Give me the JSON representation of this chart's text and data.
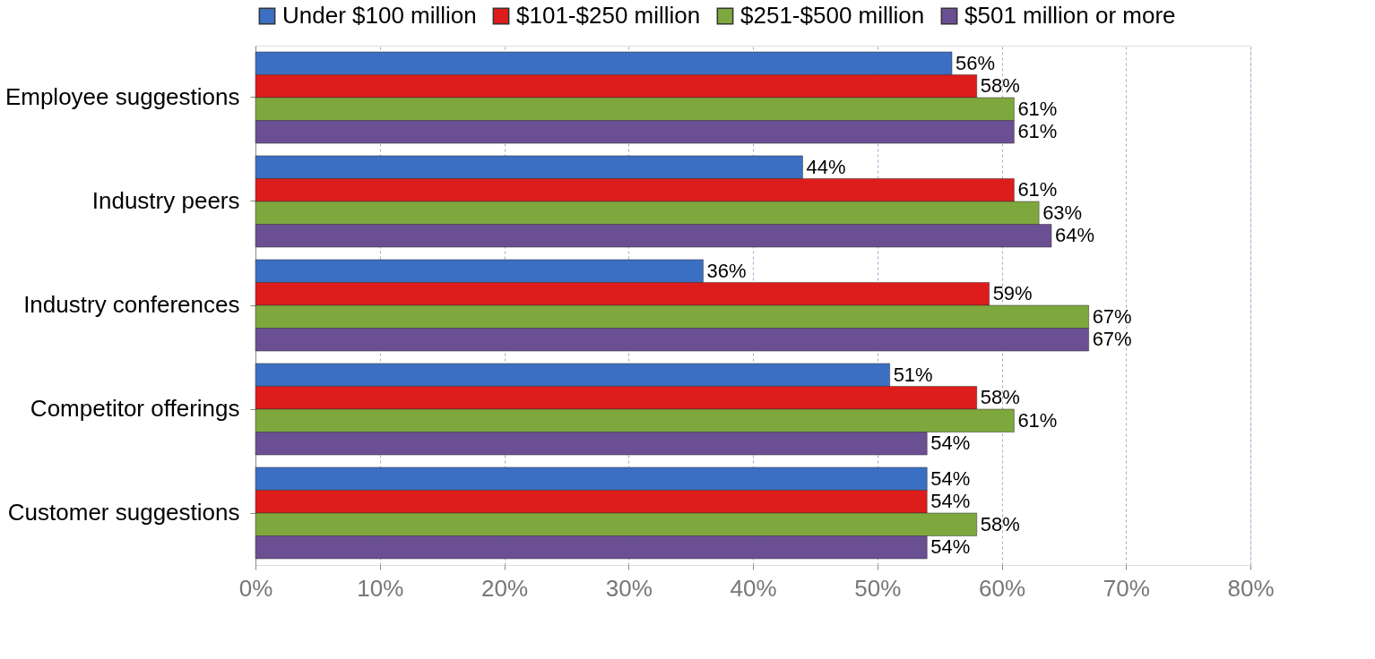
{
  "chart_data": {
    "type": "bar",
    "orientation": "horizontal",
    "legend": "top",
    "grid": "x",
    "categories": [
      "Employee suggestions",
      "Industry peers",
      "Industry conferences",
      "Competitor offerings",
      "Customer suggestions"
    ],
    "xlim": [
      0,
      80
    ],
    "xticks": [
      {
        "value": 0,
        "label": "0%"
      },
      {
        "value": 10,
        "label": "10%"
      },
      {
        "value": 20,
        "label": "20%"
      },
      {
        "value": 30,
        "label": "30%"
      },
      {
        "value": 40,
        "label": "40%"
      },
      {
        "value": 50,
        "label": "50%"
      },
      {
        "value": 60,
        "label": "60%"
      },
      {
        "value": 70,
        "label": "70%"
      },
      {
        "value": 80,
        "label": "80%"
      }
    ],
    "series": [
      {
        "name": "Under $100 million",
        "color": "#3b6fc2",
        "values": [
          56,
          44,
          36,
          51,
          54
        ],
        "value_labels": [
          "56%",
          "44%",
          "36%",
          "51%",
          "54%"
        ]
      },
      {
        "name": "$101-$250 million",
        "color": "#dd1c1c",
        "values": [
          58,
          61,
          59,
          58,
          54
        ],
        "value_labels": [
          "58%",
          "61%",
          "59%",
          "58%",
          "54%"
        ]
      },
      {
        "name": "$251-$500 million",
        "color": "#7ea83d",
        "values": [
          61,
          63,
          67,
          61,
          58
        ],
        "value_labels": [
          "61%",
          "63%",
          "67%",
          "61%",
          "58%"
        ]
      },
      {
        "name": "$501 million or more",
        "color": "#6a4f92",
        "values": [
          61,
          64,
          67,
          54,
          54
        ],
        "value_labels": [
          "61%",
          "64%",
          "67%",
          "54%",
          "54%"
        ]
      }
    ]
  }
}
